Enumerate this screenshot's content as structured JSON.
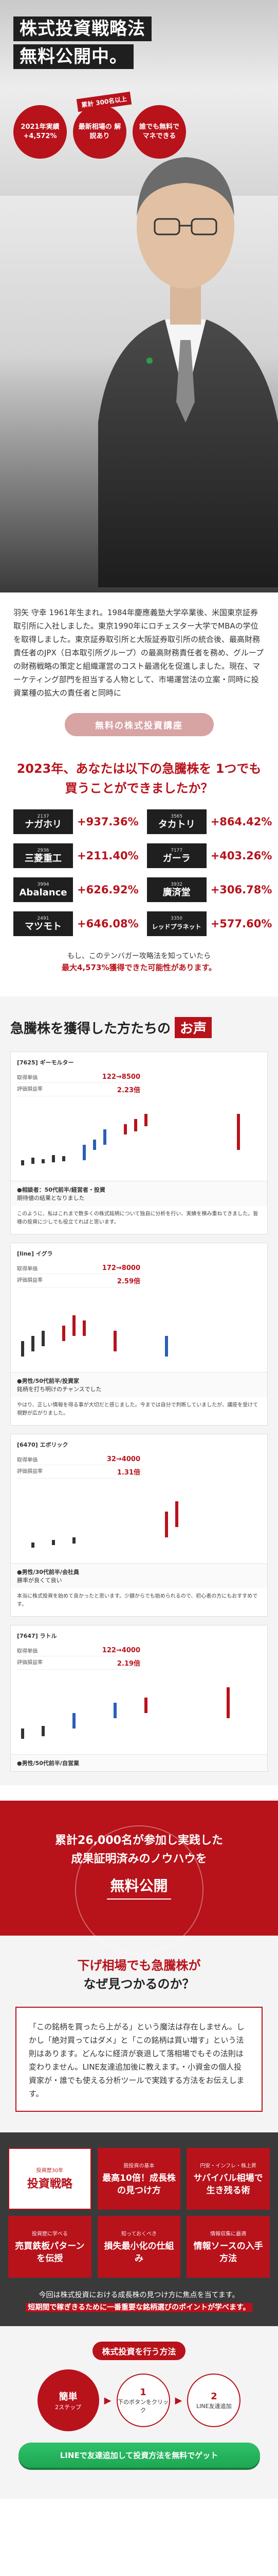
{
  "hero": {
    "title_lines": [
      "株式投資戦略法",
      "無料公開中。"
    ],
    "tag": "累計 300名以上",
    "badges": [
      {
        "text": "2021年実績 +4,572%"
      },
      {
        "text": "最新相場の 解説あり"
      },
      {
        "text": "誰でも無料で マネできる"
      }
    ]
  },
  "profile": {
    "text": "羽矢 守幸 1961年生まれ。1984年慶應義塾大学卒業後、米国東京証券取引所に入社しました。東京1990年にロチェスター大学でMBAの学位を取得しました。東京証券取引所と大阪証券取引所の統合後、最高財務責任者のJPX（日本取引所グループ）の最高財務責任者を務め、グループの財務戦略の策定と組織運営のコスト最適化を促進しました。現在、マーケティング部門を担当する人物として、市場運営法の立案・同時に投資業種の拡大の責任者と同時に",
    "seminar_label": "無料の株式投資講座"
  },
  "question": {
    "title": "2023年、あなたは以下の急騰株を 1つでも買うことができましたか？",
    "stocks": [
      {
        "code": "2137",
        "name": "ナガホリ",
        "gain": "+937.36%"
      },
      {
        "code": "3565",
        "name": "タカトリ",
        "gain": "+864.42%"
      },
      {
        "code": "2936",
        "name": "三菱重工",
        "gain": "+211.40%"
      },
      {
        "code": "7177",
        "name": "ガーラ",
        "gain": "+403.26%"
      },
      {
        "code": "3994",
        "name": "Abalance",
        "gain": "+626.92%"
      },
      {
        "code": "3932",
        "name": "廣済堂",
        "gain": "+306.78%"
      },
      {
        "code": "2491",
        "name": "マツモト",
        "gain": "+646.08%"
      },
      {
        "code": "3350",
        "name": "レッドプラネット",
        "gain": "+577.60%"
      }
    ],
    "note_prefix": "もし、このテンバガー攻略法を知っていたら",
    "note_highlight": "最大4,573%獲得できた可能性があります。"
  },
  "voices": {
    "heading": "急騰株を獲得した方たちの",
    "heading_badge": "お声",
    "cards": [
      {
        "code": "[7625] ギーモルター",
        "rows": [
          {
            "k": "取得単価",
            "v": "122→8500"
          },
          {
            "k": "評価損益率",
            "v": "2.23倍"
          }
        ],
        "meta_label": "●相談者：50代前半/経営者・投資",
        "meta_sub": "期待値の結果となりました",
        "text": "このように、私はこれまで数多くの株式銘柄について独自に分析を行い、実績を積み重ねてきました。皆様の投資に少しでも役立てればと思います。"
      },
      {
        "code": "[line] イグラ",
        "rows": [
          {
            "k": "取得単価",
            "v": "172→8000"
          },
          {
            "k": "評価損益率",
            "v": "2.59倍"
          }
        ],
        "meta_label": "●男性/50代前半/投資家",
        "meta_sub": "銘柄を打ち明けのチャンスでした",
        "text": "やはり、正しい情報を得る事が大切だと感じました。今までは自分で判断していましたが、講座を受けて視野が広がりました。"
      },
      {
        "code": "[6470] エボリック",
        "rows": [
          {
            "k": "取得単価",
            "v": "32→4000"
          },
          {
            "k": "評価損益率",
            "v": "1.31倍"
          }
        ],
        "meta_label": "●男性/30代前半/会社員",
        "meta_sub": "勝率が良くて良い",
        "text": "本当に株式投資を始めて良かったと思います。少額からでも始められるので、初心者の方にもおすすめです。"
      },
      {
        "code": "[7647] ラトル",
        "rows": [
          {
            "k": "取得単価",
            "v": "122→4000"
          },
          {
            "k": "評価損益率",
            "v": "2.19倍"
          }
        ],
        "meta_label": "●男性/50代前半/自営業",
        "meta_sub": "",
        "text": ""
      }
    ]
  },
  "big": {
    "line1": "累計26,000名が参加し実践した",
    "line2": "成果証明済みのノウハウを",
    "line3": "無料公開"
  },
  "why": {
    "title_a": "下げ相場でも急騰株が",
    "title_b": "なぜ見つかるのか？",
    "box": "「この銘柄を買ったら上がる」という魔法は存在しません。しかし「絶対買ってはダメ」と「この銘柄は買い増す」という法則はあります。どんなに経済が衰退して落相場でもその法則は変わりません。LINE友達追加後に教えます。・小資金の個人投資家が・誰でも使える分析ツールで実践する方法をお伝えします。"
  },
  "strategy": {
    "cards": [
      {
        "small": "投資歴30年",
        "title": "投資戦略"
      },
      {
        "small": "脱投資の基本",
        "title": "最高10倍！成長株の見つけ方"
      },
      {
        "small": "円安・インフレ・株上昇",
        "title": "サバイバル相場で生き残る術"
      },
      {
        "small": "投資歴に学べる",
        "title": "売買鉄板パターンを伝授"
      },
      {
        "small": "知っておくべき",
        "title": "損失最小化の仕組み"
      },
      {
        "small": "情報収集に最適",
        "title": "情報ソースの入手方法"
      }
    ],
    "note_a": "今回は株式投資における成長株の見つけ方に焦点を当てます。",
    "note_b": "短期間で稼ぎきるために一番重要な銘柄選びのポイントが学べます。"
  },
  "steps": {
    "heading": "株式投資を行う方法",
    "items": [
      {
        "n": "簡単",
        "label": "2ステップ"
      },
      {
        "n": "1",
        "label": "下のボタンをクリック"
      },
      {
        "n": "2",
        "label": "LINE友達追加"
      }
    ],
    "cta": "LINEで友達追加して投資方法を無料でゲット"
  },
  "colors": {
    "brand": "#b8121b",
    "cta": "#1ea652",
    "dark": "#1f1f1f"
  }
}
